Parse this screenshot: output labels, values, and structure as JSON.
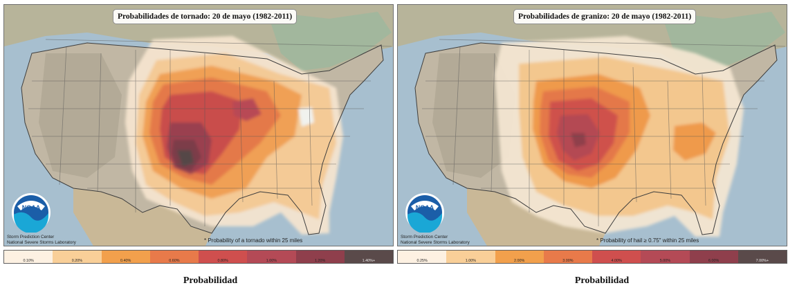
{
  "colors": {
    "ocean": "#a7bfcf",
    "land": "#c1b7a4",
    "forest": "#9fb79e",
    "legend_ramp": [
      "#fdf1e2",
      "#f9cf98",
      "#f2a04c",
      "#e87a4a",
      "#cf4f4e",
      "#b44a56",
      "#8f3f4c",
      "#5a4a4a"
    ]
  },
  "left_map": {
    "title": "Probabilidades de tornado: 20 de mayo (1982-2011)",
    "credit_line1": "Storm Prediction Center",
    "credit_line2": "National Severe Storms Laboratory",
    "footnote": "* Probability of a tornado within 25 miles",
    "logo_text": "NOAA",
    "legend_labels": [
      "0.10%",
      "0.20%",
      "0.40%",
      "0.60%",
      "0.80%",
      "1.00%",
      "1.20%",
      "1.40%+"
    ],
    "caption": "Probabilidad"
  },
  "right_map": {
    "title": "Probabilidades de granizo: 20 de mayo (1982-2011)",
    "credit_line1": "Storm Prediction Center",
    "credit_line2": "National Severe Storms Laboratory",
    "footnote": "* Probability of hail ≥ 0.75\" within 25 miles",
    "logo_text": "NOAA",
    "legend_labels": [
      "0.25%",
      "1.00%",
      "2.00%",
      "3.00%",
      "4.00%",
      "5.00%",
      "6.00%",
      "7.00%+"
    ],
    "caption": "Probabilidad"
  }
}
